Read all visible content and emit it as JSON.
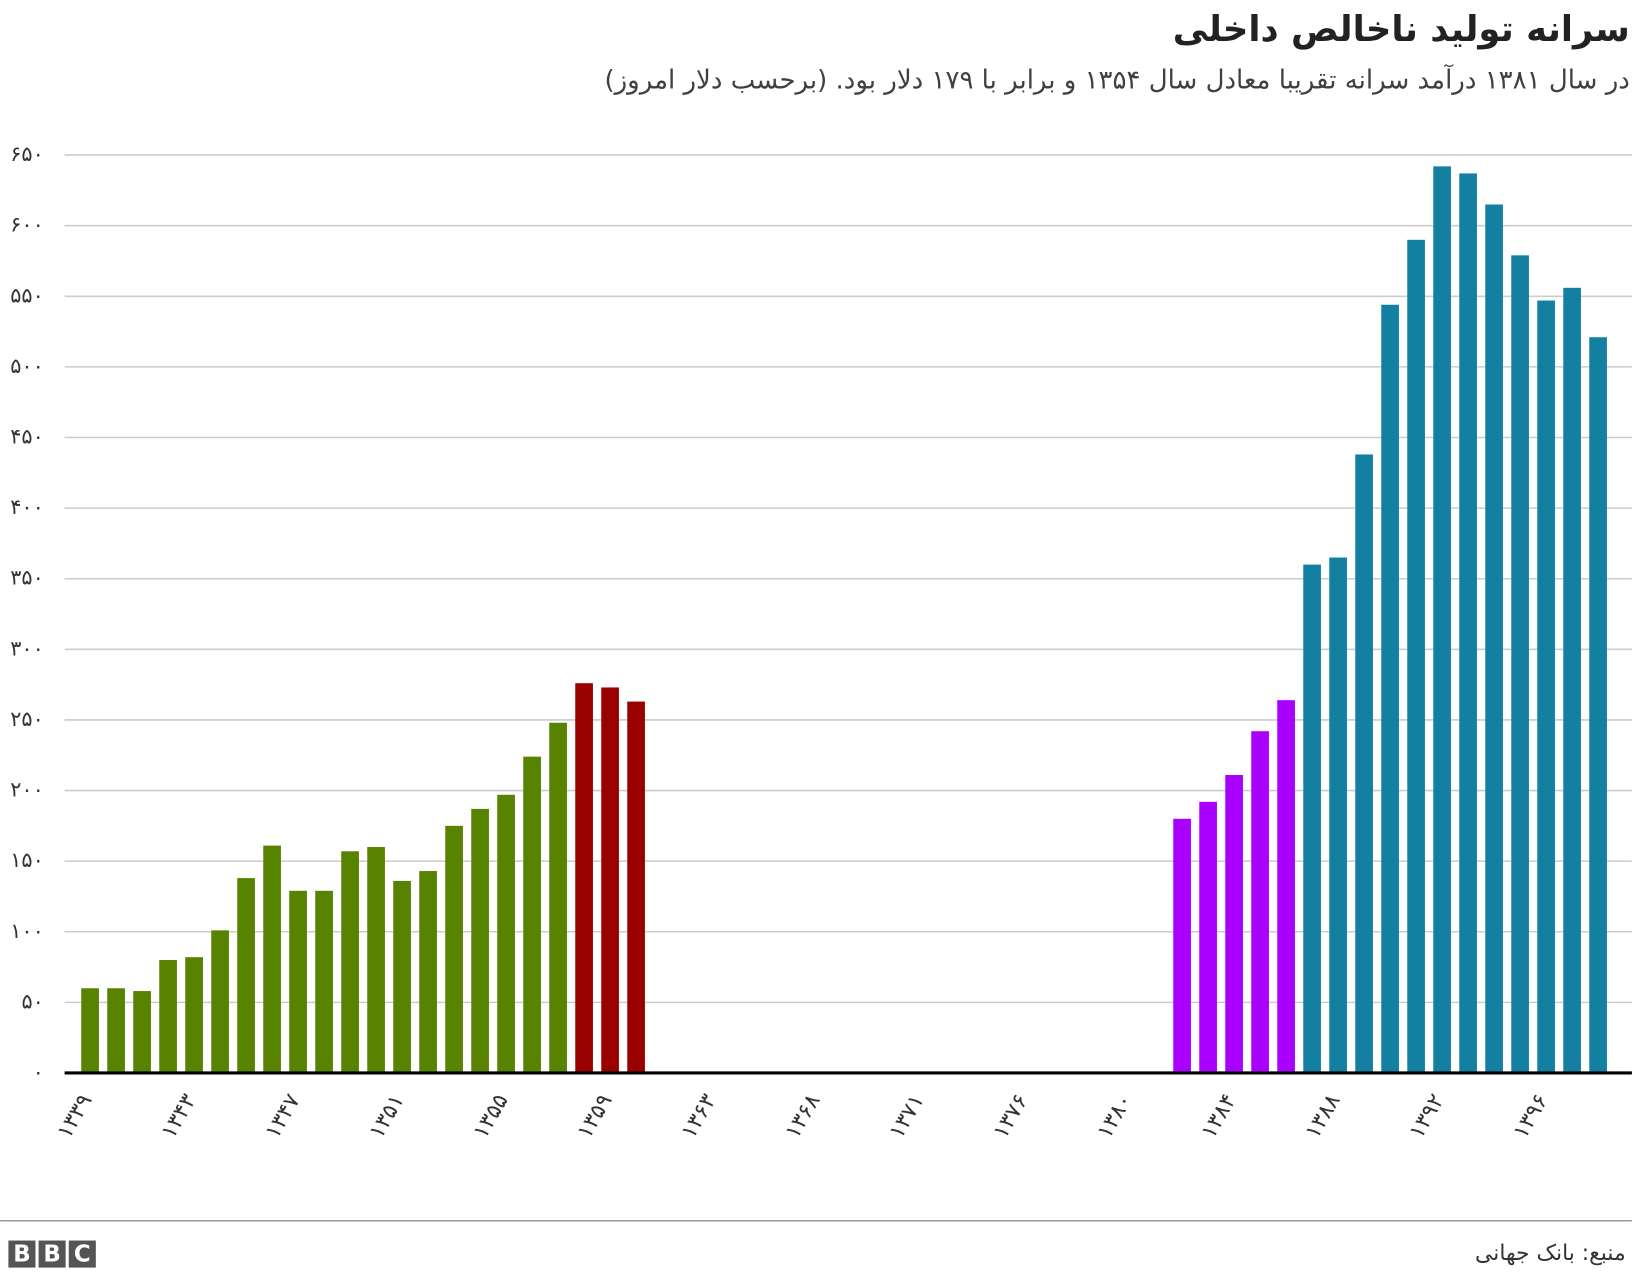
{
  "chart_data": {
    "type": "bar",
    "title": "سرانه تولید ناخالص داخلی",
    "subtitle": "در سال ۱۳۸۱ درآمد سرانه تقریبا معادل سال ۱۳۵۴ و برابر با ۱۷۹ دلار بود. (برحسب دلار امروز)",
    "categories": [
      "۱۳۳۹",
      null,
      null,
      null,
      "۱۳۴۳",
      null,
      null,
      null,
      "۱۳۴۷",
      null,
      null,
      null,
      "۱۳۵۱",
      null,
      null,
      null,
      "۱۳۵۵",
      null,
      null,
      null,
      "۱۳۵۹",
      null,
      null,
      null,
      "۱۳۶۳",
      null,
      null,
      null,
      "۱۳۶۸",
      null,
      null,
      null,
      "۱۳۷۱",
      null,
      null,
      null,
      "۱۳۷۶",
      null,
      null,
      null,
      "۱۳۸۰",
      null,
      null,
      null,
      "۱۳۸۴",
      null,
      null,
      null,
      "۱۳۸۸",
      null,
      null,
      null,
      "۱۳۹۲",
      null,
      null,
      null,
      "۱۳۹۶",
      null,
      null
    ],
    "values": [
      60,
      60,
      58,
      80,
      82,
      101,
      138,
      161,
      129,
      129,
      157,
      160,
      136,
      143,
      175,
      187,
      197,
      224,
      248,
      276,
      273,
      263,
      null,
      null,
      null,
      null,
      null,
      null,
      null,
      null,
      null,
      null,
      null,
      null,
      null,
      null,
      null,
      null,
      null,
      null,
      null,
      null,
      180,
      192,
      211,
      242,
      264,
      360,
      365,
      438,
      544,
      590,
      642,
      637,
      615,
      579,
      547,
      556,
      521
    ],
    "colors": [
      "#588300",
      "#588300",
      "#588300",
      "#588300",
      "#588300",
      "#588300",
      "#588300",
      "#588300",
      "#588300",
      "#588300",
      "#588300",
      "#588300",
      "#588300",
      "#588300",
      "#588300",
      "#588300",
      "#588300",
      "#588300",
      "#588300",
      "#990000",
      "#990000",
      "#990000",
      null,
      null,
      null,
      null,
      null,
      null,
      null,
      null,
      null,
      null,
      null,
      null,
      null,
      null,
      null,
      null,
      null,
      null,
      null,
      null,
      "#aa00ff",
      "#aa00ff",
      "#aa00ff",
      "#aa00ff",
      "#aa00ff",
      "#1380a1",
      "#1380a1",
      "#1380a1",
      "#1380a1",
      "#1380a1",
      "#1380a1",
      "#1380a1",
      "#1380a1",
      "#1380a1",
      "#1380a1",
      "#1380a1",
      "#1380a1"
    ],
    "ylim": [
      0,
      650
    ],
    "yticks": [
      {
        "value": 0,
        "label": "۰"
      },
      {
        "value": 50,
        "label": "۵۰"
      },
      {
        "value": 100,
        "label": "۱۰۰"
      },
      {
        "value": 150,
        "label": "۱۵۰"
      },
      {
        "value": 200,
        "label": "۲۰۰"
      },
      {
        "value": 250,
        "label": "۲۵۰"
      },
      {
        "value": 300,
        "label": "۳۰۰"
      },
      {
        "value": 350,
        "label": "۳۵۰"
      },
      {
        "value": 400,
        "label": "۴۰۰"
      },
      {
        "value": 450,
        "label": "۴۵۰"
      },
      {
        "value": 500,
        "label": "۵۰۰"
      },
      {
        "value": 550,
        "label": "۵۵۰"
      },
      {
        "value": 600,
        "label": "۶۰۰"
      },
      {
        "value": 650,
        "label": "۶۵۰"
      }
    ],
    "grid": true,
    "source": "منبع: بانک جهانی",
    "logo": "BBC"
  }
}
